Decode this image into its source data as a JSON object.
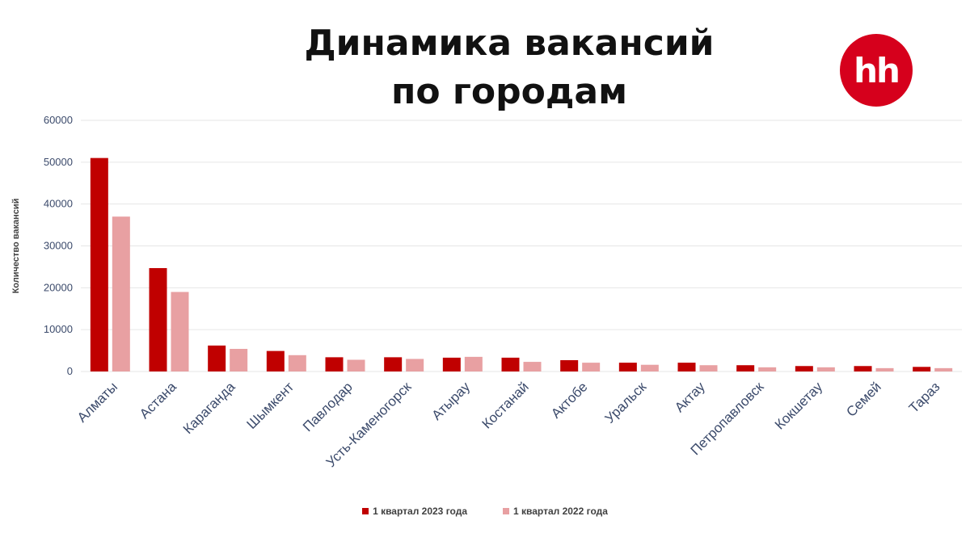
{
  "logo": {
    "text": "hh",
    "color": "#d6001c"
  },
  "colors": {
    "series_2023": "#c00000",
    "series_2022": "#e8a0a2",
    "grid": "#e6e6e6",
    "tick": "#3b4a6b"
  },
  "chart_data": {
    "type": "bar",
    "title": "Динамика вакансий по городам",
    "title_lines": [
      "Динамика вакансий",
      "по городам"
    ],
    "xlabel": "",
    "ylabel": "Количество вакансий",
    "ylim": [
      0,
      60000
    ],
    "yticks": [
      0,
      10000,
      20000,
      30000,
      40000,
      50000,
      60000
    ],
    "grid": true,
    "legend_position": "bottom",
    "categories": [
      "Алматы",
      "Астана",
      "Караганда",
      "Шымкент",
      "Павлодар",
      "Усть-Каменогорск",
      "Атырау",
      "Костанай",
      "Актобе",
      "Уральск",
      "Актау",
      "Петропавловск",
      "Кокшетау",
      "Семей",
      "Тараз"
    ],
    "series": [
      {
        "name": "1 квартал 2023 года",
        "values": [
          51000,
          24700,
          6200,
          4900,
          3400,
          3400,
          3300,
          3300,
          2700,
          2100,
          2100,
          1500,
          1300,
          1300,
          1100
        ]
      },
      {
        "name": "1 квартал 2022 года",
        "values": [
          37000,
          19000,
          5400,
          3900,
          2800,
          3000,
          3500,
          2300,
          2100,
          1600,
          1500,
          1000,
          1000,
          800,
          800
        ]
      }
    ]
  }
}
